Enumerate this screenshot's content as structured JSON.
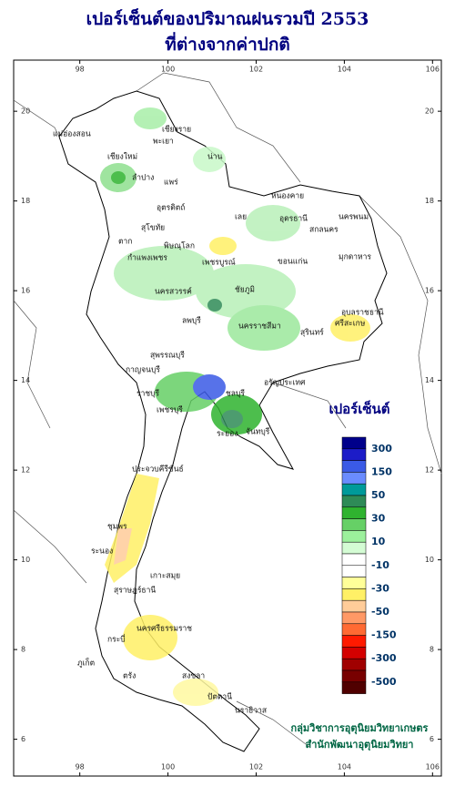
{
  "title": [
    "เปอร์เซ็นต์ของปริมาณฝนรวมปี 2553",
    "ที่ต่างจากค่าปกติ"
  ],
  "map": {
    "lonlim": [
      96.5,
      106.2
    ],
    "latlim": [
      5.18,
      21.14
    ],
    "lonticks": [
      98,
      100,
      102,
      104,
      106
    ],
    "latticks": [
      6,
      8,
      10,
      12,
      14,
      16,
      18,
      20
    ]
  },
  "provinces": [
    "เชียงราย",
    "แม่ฮ่องสอน",
    "เชียงใหม่",
    "ลำปาง",
    "พะเยา",
    "น่าน",
    "แพร่",
    "อุตรดิตถ์",
    "ตาก",
    "สุโขทัย",
    "พิษณุโลก",
    "เพชรบูรณ์",
    "กำแพงเพชร",
    "นครสวรรค์",
    "ลพบุรี",
    "กาญจนบุรี",
    "สุพรรณบุรี",
    "ราชบุรี",
    "เพชรบุรี",
    "ชลบุรี",
    "ระยอง",
    "จันทบุรี",
    "อรัญประเทศ",
    "นครราชสีมา",
    "ชัยภูมิ",
    "ขอนแก่น",
    "หนองคาย",
    "อุดรธานี",
    "สกลนคร",
    "นครพนม",
    "มุกดาหาร",
    "อุบลราชธานี",
    "สุรินทร์",
    "ศรีสะเกษ",
    "เลย",
    "ประจวบคีรีขันธ์",
    "ชุมพร",
    "ระนอง",
    "สุราษฎร์ธานี",
    "เกาะสมุย",
    "นครศรีธรรมราช",
    "ภูเก็ต",
    "กระบี่",
    "ตรัง",
    "สงขลา",
    "ปัตตานี",
    "นราธิวาส"
  ],
  "legend": {
    "title": "เปอร์เซ็นต์",
    "labels": [
      300,
      150,
      50,
      30,
      10,
      -10,
      -30,
      -50,
      -150,
      -300,
      -500
    ],
    "colors": [
      "#00008b",
      "#1c1cc8",
      "#3a5ae6",
      "#6a8cff",
      "#009a9a",
      "#2e8b57",
      "#2fb32f",
      "#66d066",
      "#9cf09c",
      "#d4fcd4",
      "#ffffff",
      "#ffffff",
      "#ffff99",
      "#fff066",
      "#ffcc99",
      "#ff9966",
      "#ff6a33",
      "#ff1a00",
      "#d40000",
      "#a00000",
      "#780000",
      "#500000"
    ]
  },
  "credits": [
    "กลุ่มวิชาการอุตุนิยมวิทยาเกษตร",
    "สำนักพัฒนาอุตุนิยมวิทยา"
  ]
}
